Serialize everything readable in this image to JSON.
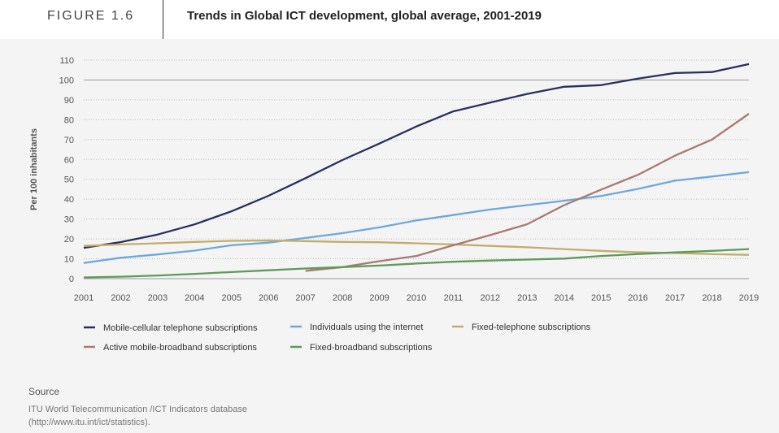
{
  "header": {
    "figure_label": "FIGURE 1.6",
    "title": "Trends in Global ICT development, global average, 2001-2019"
  },
  "chart_data": {
    "type": "line",
    "title": "Trends in Global ICT development, global average, 2001-2019",
    "xlabel": "",
    "ylabel": "Per 100 inhabitants",
    "ylim": [
      0,
      110
    ],
    "yticks": [
      0,
      10,
      20,
      30,
      40,
      50,
      60,
      70,
      80,
      90,
      100,
      110
    ],
    "x": [
      2001,
      2002,
      2003,
      2004,
      2005,
      2006,
      2007,
      2008,
      2009,
      2010,
      2011,
      2012,
      2013,
      2014,
      2015,
      2016,
      2017,
      2018,
      2019
    ],
    "grid": "horizontal dotted",
    "legend_position": "bottom",
    "series": [
      {
        "name": "Mobile-cellular telephone subscriptions",
        "color": "#2a2f5e",
        "values": [
          15.5,
          18.4,
          22.2,
          27.3,
          33.9,
          41.7,
          50.6,
          59.7,
          68.0,
          76.6,
          84.2,
          88.6,
          93.0,
          96.6,
          97.4,
          100.7,
          103.5,
          104.0,
          108.0
        ]
      },
      {
        "name": "Individuals using the internet",
        "color": "#6fa8dc",
        "values": [
          7.9,
          10.5,
          12.2,
          14.1,
          16.8,
          18.1,
          20.5,
          22.9,
          25.8,
          29.3,
          32.0,
          34.8,
          37.0,
          39.2,
          41.6,
          45.2,
          49.3,
          51.4,
          53.6
        ]
      },
      {
        "name": "Fixed-telephone subscriptions",
        "color": "#c2ad6c",
        "values": [
          16.5,
          17.2,
          17.8,
          18.5,
          19.0,
          19.2,
          18.9,
          18.5,
          18.3,
          17.8,
          17.2,
          16.5,
          15.8,
          14.9,
          14.0,
          13.3,
          12.9,
          12.3,
          12.0
        ]
      },
      {
        "name": "Active mobile-broadband subscriptions",
        "color": "#a87b72",
        "x": [
          2007,
          2008,
          2009,
          2010,
          2011,
          2012,
          2013,
          2014,
          2015,
          2016,
          2017,
          2018,
          2019
        ],
        "values": [
          3.9,
          5.8,
          8.8,
          11.4,
          16.8,
          21.9,
          27.4,
          37.0,
          44.8,
          52.3,
          61.9,
          70.0,
          83.0
        ]
      },
      {
        "name": "Fixed-broadband subscriptions",
        "color": "#5f9a5a",
        "values": [
          0.6,
          1.0,
          1.6,
          2.4,
          3.3,
          4.2,
          5.1,
          5.8,
          6.6,
          7.6,
          8.5,
          9.1,
          9.6,
          10.1,
          11.4,
          12.4,
          13.2,
          14.0,
          14.9
        ]
      }
    ]
  },
  "source": {
    "label": "Source",
    "text": "ITU World Telecommunication /ICT Indicators database (http://www.itu.int/ict/statistics)."
  }
}
